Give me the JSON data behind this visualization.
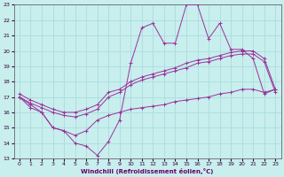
{
  "xlabel": "Windchill (Refroidissement éolien,°C)",
  "xlim": [
    -0.5,
    23.5
  ],
  "ylim": [
    13,
    23
  ],
  "xticks": [
    0,
    1,
    2,
    3,
    4,
    5,
    6,
    7,
    8,
    9,
    10,
    11,
    12,
    13,
    14,
    15,
    16,
    17,
    18,
    19,
    20,
    21,
    22,
    23
  ],
  "yticks": [
    13,
    14,
    15,
    16,
    17,
    18,
    19,
    20,
    21,
    22,
    23
  ],
  "bg_color": "#c8eeee",
  "grid_color": "#aadddd",
  "line_color": "#993399",
  "line1_x": [
    0,
    1,
    2,
    3,
    4,
    5,
    6,
    7,
    8,
    9,
    10,
    11,
    12,
    13,
    14,
    15,
    16,
    17,
    18,
    19,
    20,
    21,
    22,
    23
  ],
  "line1_y": [
    17.0,
    16.5,
    16.0,
    15.0,
    14.8,
    14.0,
    13.8,
    13.2,
    14.1,
    15.5,
    19.2,
    21.5,
    21.8,
    20.5,
    20.5,
    23.0,
    23.0,
    20.8,
    21.8,
    20.1,
    20.1,
    19.5,
    17.2,
    17.5
  ],
  "line2_x": [
    0,
    1,
    2,
    3,
    4,
    5,
    6,
    7,
    8,
    9,
    10,
    11,
    12,
    13,
    14,
    15,
    16,
    17,
    18,
    19,
    20,
    21,
    22,
    23
  ],
  "line2_y": [
    17.2,
    16.8,
    16.5,
    16.2,
    16.0,
    16.0,
    16.2,
    16.5,
    17.3,
    17.5,
    18.0,
    18.3,
    18.5,
    18.7,
    18.9,
    19.2,
    19.4,
    19.5,
    19.7,
    19.9,
    20.0,
    20.0,
    19.5,
    17.5
  ],
  "line3_x": [
    0,
    1,
    2,
    3,
    4,
    5,
    6,
    7,
    8,
    9,
    10,
    11,
    12,
    13,
    14,
    15,
    16,
    17,
    18,
    19,
    20,
    21,
    22,
    23
  ],
  "line3_y": [
    17.0,
    16.6,
    16.3,
    16.0,
    15.8,
    15.7,
    15.9,
    16.2,
    17.0,
    17.3,
    17.8,
    18.1,
    18.3,
    18.5,
    18.7,
    18.9,
    19.2,
    19.3,
    19.5,
    19.7,
    19.8,
    19.8,
    19.3,
    17.3
  ],
  "line4_x": [
    0,
    1,
    2,
    3,
    4,
    5,
    6,
    7,
    8,
    9,
    10,
    11,
    12,
    13,
    14,
    15,
    16,
    17,
    18,
    19,
    20,
    21,
    22,
    23
  ],
  "line4_y": [
    17.0,
    16.3,
    16.0,
    15.0,
    14.8,
    14.5,
    14.8,
    15.5,
    15.8,
    16.0,
    16.2,
    16.3,
    16.4,
    16.5,
    16.7,
    16.8,
    16.9,
    17.0,
    17.2,
    17.3,
    17.5,
    17.5,
    17.3,
    17.5
  ]
}
